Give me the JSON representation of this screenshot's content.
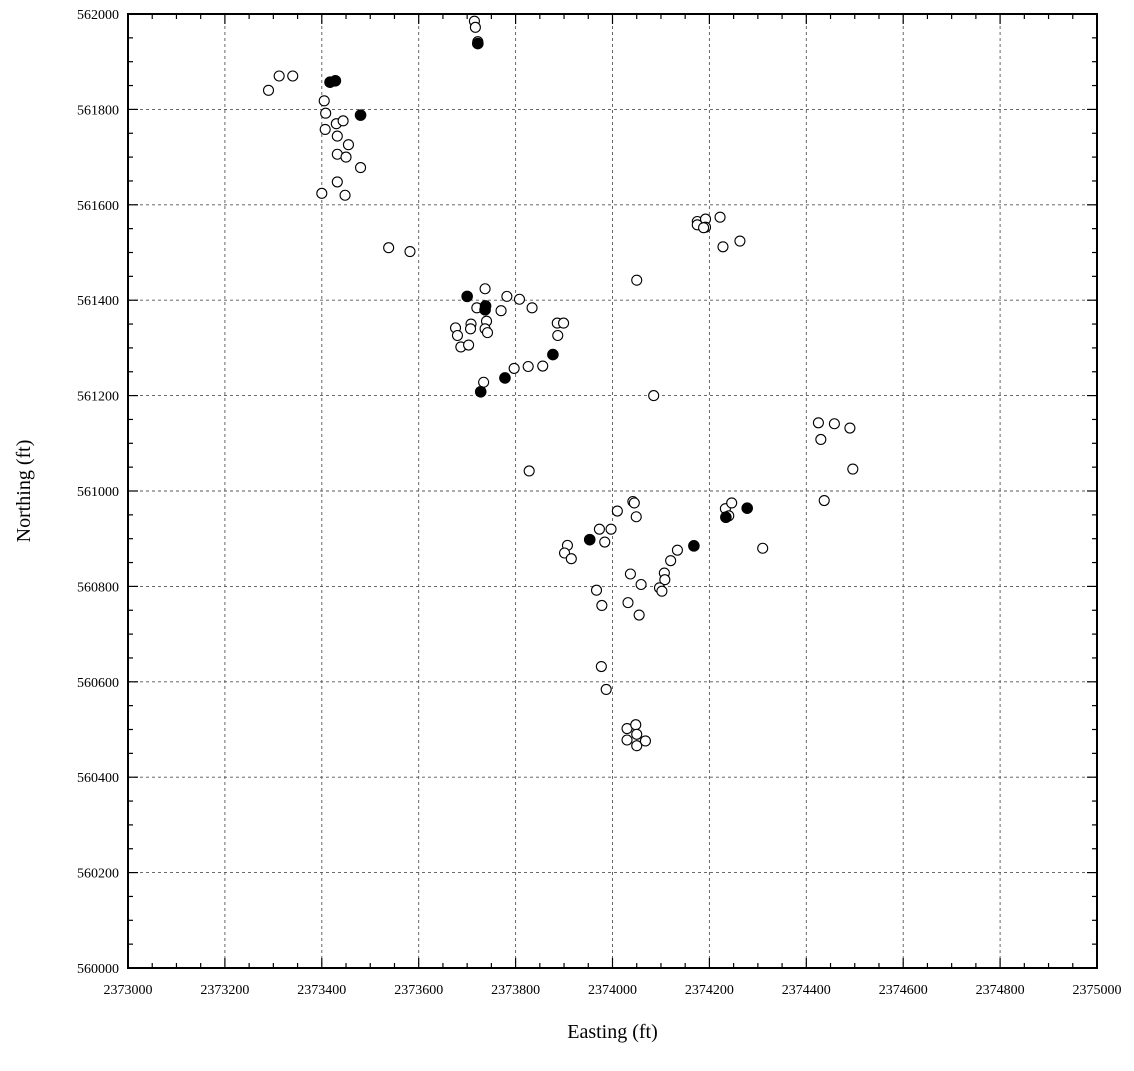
{
  "chart_data": {
    "type": "scatter",
    "title": "",
    "xlabel": "Easting (ft)",
    "ylabel": "Northing (ft)",
    "xlim": [
      2373000,
      2375000
    ],
    "ylim": [
      560000,
      562000
    ],
    "grid": true,
    "x_ticks": [
      "2373000",
      "2373200",
      "2373400",
      "2373600",
      "2373800",
      "2374000",
      "2374200",
      "2374400",
      "2374600",
      "2374800",
      "2375000"
    ],
    "y_ticks": [
      "560000",
      "560200",
      "560400",
      "560600",
      "560800",
      "561000",
      "561200",
      "561400",
      "561600",
      "561800",
      "562000"
    ],
    "series": [
      {
        "marker": "open-circle",
        "color": "#000000",
        "points": [
          [
            2373290,
            561840
          ],
          [
            2373312,
            561870
          ],
          [
            2373340,
            561870
          ],
          [
            2373405,
            561818
          ],
          [
            2373408,
            561792
          ],
          [
            2373407,
            561758
          ],
          [
            2373430,
            561770
          ],
          [
            2373444,
            561776
          ],
          [
            2373432,
            561744
          ],
          [
            2373432,
            561706
          ],
          [
            2373450,
            561700
          ],
          [
            2373455,
            561726
          ],
          [
            2373480,
            561678
          ],
          [
            2373400,
            561624
          ],
          [
            2373432,
            561648
          ],
          [
            2373448,
            561620
          ],
          [
            2373538,
            561510
          ],
          [
            2373582,
            561502
          ],
          [
            2373715,
            561985
          ],
          [
            2373717,
            561972
          ],
          [
            2373722,
            561942
          ],
          [
            2373737,
            561424
          ],
          [
            2373720,
            561384
          ],
          [
            2373740,
            561356
          ],
          [
            2373708,
            561350
          ],
          [
            2373676,
            561342
          ],
          [
            2373707,
            561340
          ],
          [
            2373737,
            561340
          ],
          [
            2373680,
            561326
          ],
          [
            2373742,
            561332
          ],
          [
            2373687,
            561302
          ],
          [
            2373703,
            561306
          ],
          [
            2373770,
            561378
          ],
          [
            2373782,
            561408
          ],
          [
            2373808,
            561402
          ],
          [
            2373834,
            561384
          ],
          [
            2373886,
            561352
          ],
          [
            2373899,
            561352
          ],
          [
            2373887,
            561326
          ],
          [
            2373797,
            561257
          ],
          [
            2373826,
            561261
          ],
          [
            2373856,
            561262
          ],
          [
            2373734,
            561228
          ],
          [
            2373828,
            561042
          ],
          [
            2374050,
            561442
          ],
          [
            2374175,
            561565
          ],
          [
            2374175,
            561558
          ],
          [
            2374192,
            561570
          ],
          [
            2374192,
            561553
          ],
          [
            2374188,
            561552
          ],
          [
            2374222,
            561574
          ],
          [
            2374228,
            561512
          ],
          [
            2374263,
            561524
          ],
          [
            2374085,
            561200
          ],
          [
            2374425,
            561143
          ],
          [
            2374458,
            561141
          ],
          [
            2374490,
            561132
          ],
          [
            2374430,
            561108
          ],
          [
            2374496,
            561046
          ],
          [
            2374437,
            560980
          ],
          [
            2374042,
            560978
          ],
          [
            2374045,
            560975
          ],
          [
            2374049,
            560946
          ],
          [
            2374010,
            560958
          ],
          [
            2373973,
            560920
          ],
          [
            2373997,
            560920
          ],
          [
            2373984,
            560893
          ],
          [
            2373907,
            560886
          ],
          [
            2373901,
            560870
          ],
          [
            2373915,
            560858
          ],
          [
            2374134,
            560876
          ],
          [
            2374120,
            560854
          ],
          [
            2374107,
            560828
          ],
          [
            2374108,
            560814
          ],
          [
            2374097,
            560797
          ],
          [
            2374102,
            560790
          ],
          [
            2374037,
            560826
          ],
          [
            2374059,
            560804
          ],
          [
            2374032,
            560766
          ],
          [
            2374055,
            560740
          ],
          [
            2373967,
            560792
          ],
          [
            2373978,
            560760
          ],
          [
            2374233,
            560963
          ],
          [
            2374246,
            560975
          ],
          [
            2374240,
            560948
          ],
          [
            2374310,
            560880
          ],
          [
            2373977,
            560632
          ],
          [
            2373987,
            560584
          ],
          [
            2374030,
            560502
          ],
          [
            2374048,
            560510
          ],
          [
            2374030,
            560478
          ],
          [
            2374050,
            560490
          ],
          [
            2374050,
            560466
          ],
          [
            2374068,
            560476
          ]
        ]
      },
      {
        "marker": "filled-circle",
        "color": "#000000",
        "points": [
          [
            2373417,
            561857
          ],
          [
            2373428,
            561860
          ],
          [
            2373480,
            561788
          ],
          [
            2373722,
            561938
          ],
          [
            2373700,
            561408
          ],
          [
            2373738,
            561388
          ],
          [
            2373737,
            561380
          ],
          [
            2373877,
            561286
          ],
          [
            2373778,
            561237
          ],
          [
            2373728,
            561208
          ],
          [
            2373953,
            560898
          ],
          [
            2374168,
            560885
          ],
          [
            2374234,
            560945
          ],
          [
            2374278,
            560964
          ]
        ]
      }
    ]
  }
}
